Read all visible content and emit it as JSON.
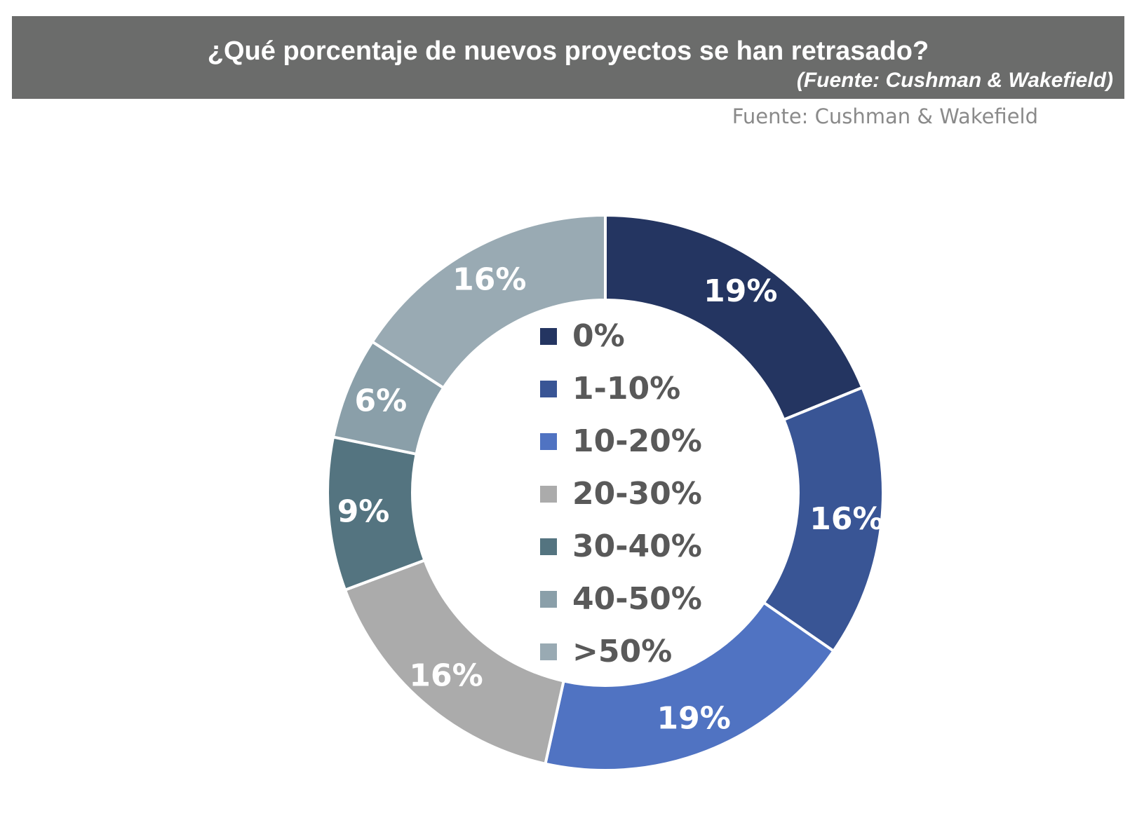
{
  "header": {
    "title": "¿Qué porcentaje de nuevos proyectos se han retrasado?",
    "source": "(Fuente: Cushman & Wakefield)"
  },
  "chart_source_note": "Fuente: Cushman  & Wakefield",
  "chart_data": {
    "type": "pie",
    "donut": true,
    "legend_position": "center",
    "categories": [
      "0%",
      "1-10%",
      "10-20%",
      "20-30%",
      "30-40%",
      "40-50%",
      ">50%"
    ],
    "values": [
      19,
      16,
      19,
      16,
      9,
      6,
      16
    ],
    "data_labels": [
      "19%",
      "16%",
      "19%",
      "16%",
      "9%",
      "6%",
      "16%"
    ],
    "colors": [
      "#243561",
      "#395595",
      "#5073c2",
      "#ababab",
      "#547480",
      "#8a9fa9",
      "#99aab3"
    ]
  }
}
